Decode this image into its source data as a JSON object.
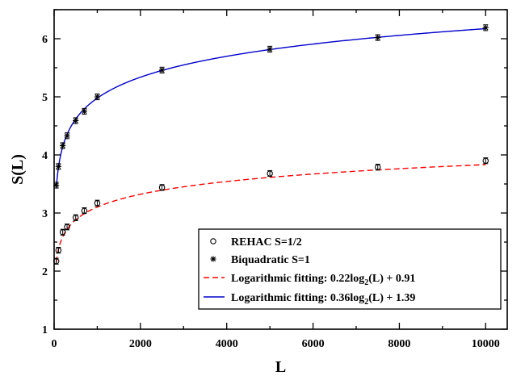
{
  "chart_data": {
    "type": "scatter",
    "xlabel": "L",
    "ylabel": "S(L)",
    "xlim": [
      0,
      10500
    ],
    "ylim": [
      1,
      6.5
    ],
    "x_ticks": [
      0,
      2000,
      4000,
      6000,
      8000,
      10000
    ],
    "y_ticks": [
      1,
      2,
      3,
      4,
      5,
      6
    ],
    "x_minor_step": 1000,
    "y_minor_step": 0.5,
    "grid": false,
    "legend_position": "bottom-right",
    "series": [
      {
        "name": "REHAC S=1/2",
        "kind": "points",
        "marker": "circle",
        "color": "#000000",
        "x": [
          50,
          100,
          200,
          300,
          500,
          700,
          1000,
          2500,
          5000,
          7500,
          10000
        ],
        "y": [
          2.17,
          2.36,
          2.67,
          2.76,
          2.92,
          3.04,
          3.17,
          3.44,
          3.68,
          3.79,
          3.9
        ],
        "err": [
          0.05,
          0.05,
          0.05,
          0.05,
          0.05,
          0.05,
          0.05,
          0.05,
          0.05,
          0.05,
          0.05
        ]
      },
      {
        "name": "Biquadratic S=1",
        "kind": "points",
        "marker": "star",
        "color": "#000000",
        "x": [
          50,
          100,
          200,
          300,
          500,
          700,
          1000,
          2500,
          5000,
          7500,
          10000
        ],
        "y": [
          3.48,
          3.8,
          4.16,
          4.33,
          4.59,
          4.75,
          5.0,
          5.46,
          5.82,
          6.02,
          6.19
        ],
        "err": [
          0.05,
          0.05,
          0.05,
          0.05,
          0.05,
          0.05,
          0.05,
          0.05,
          0.05,
          0.05,
          0.05
        ]
      },
      {
        "name": "Logarithmic fitting: 0.22log",
        "name_sub": "2",
        "name_suffix": "(L) + 0.91",
        "kind": "fit",
        "a": 0.22,
        "b": 0.91,
        "log_base": 2,
        "color": "#ff0000",
        "dashed": true,
        "x_from": 50,
        "x_to": 10000
      },
      {
        "name": "Logarithmic fitting: 0.36log",
        "name_sub": "2",
        "name_suffix": "(L) + 1.39",
        "kind": "fit",
        "a": 0.36,
        "b": 1.39,
        "log_base": 2,
        "color": "#0000cc",
        "dashed": false,
        "x_from": 50,
        "x_to": 10000
      }
    ]
  }
}
